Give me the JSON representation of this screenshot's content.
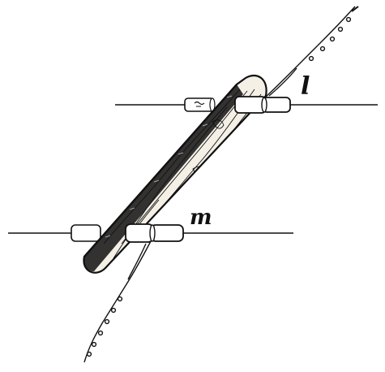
{
  "labels": {
    "upper": "l",
    "lower": "m"
  },
  "colors": {
    "ink": "#111111",
    "paper": "#ffffff"
  }
}
